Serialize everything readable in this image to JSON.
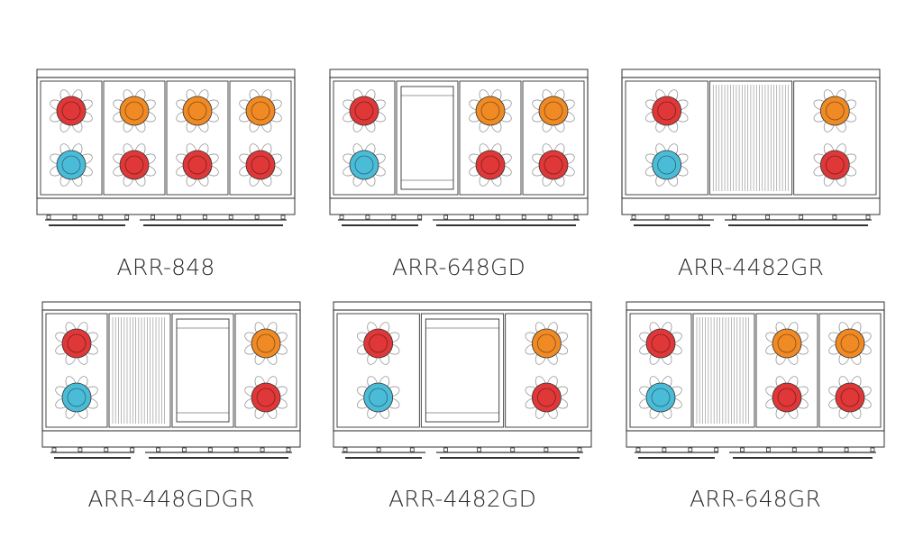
{
  "colors": {
    "outline": "#333333",
    "grate": "#9a9a9a",
    "burner_high": "#e03838",
    "burner_medium": "#f08a24",
    "burner_low": "#4bbcd8"
  },
  "models": [
    {
      "label": "ARR-848",
      "sections": [
        {
          "type": "burners",
          "burners": [
            "burner_high",
            "burner_low"
          ]
        },
        {
          "type": "burners",
          "burners": [
            "burner_medium",
            "burner_high"
          ]
        },
        {
          "type": "burners",
          "burners": [
            "burner_medium",
            "burner_high"
          ]
        },
        {
          "type": "burners",
          "burners": [
            "burner_medium",
            "burner_high"
          ]
        }
      ]
    },
    {
      "label": "ARR-648GD",
      "sections": [
        {
          "type": "burners",
          "burners": [
            "burner_high",
            "burner_low"
          ]
        },
        {
          "type": "griddle"
        },
        {
          "type": "burners",
          "burners": [
            "burner_medium",
            "burner_high"
          ]
        },
        {
          "type": "burners",
          "burners": [
            "burner_medium",
            "burner_high"
          ]
        }
      ]
    },
    {
      "label": "ARR-4482GR",
      "sections": [
        {
          "type": "burners",
          "burners": [
            "burner_high",
            "burner_low"
          ]
        },
        {
          "type": "grill"
        },
        {
          "type": "burners",
          "burners": [
            "burner_medium",
            "burner_high"
          ]
        }
      ]
    },
    {
      "label": "ARR-448GDGR",
      "sections": [
        {
          "type": "burners",
          "burners": [
            "burner_high",
            "burner_low"
          ]
        },
        {
          "type": "grill"
        },
        {
          "type": "griddle"
        },
        {
          "type": "burners",
          "burners": [
            "burner_medium",
            "burner_high"
          ]
        }
      ]
    },
    {
      "label": "ARR-4482GD",
      "sections": [
        {
          "type": "burners",
          "burners": [
            "burner_high",
            "burner_low"
          ]
        },
        {
          "type": "griddle"
        },
        {
          "type": "burners",
          "burners": [
            "burner_medium",
            "burner_high"
          ]
        }
      ]
    },
    {
      "label": "ARR-648GR",
      "sections": [
        {
          "type": "burners",
          "burners": [
            "burner_high",
            "burner_low"
          ]
        },
        {
          "type": "grill"
        },
        {
          "type": "burners",
          "burners": [
            "burner_medium",
            "burner_high"
          ]
        },
        {
          "type": "burners",
          "burners": [
            "burner_medium",
            "burner_high"
          ]
        }
      ]
    }
  ]
}
